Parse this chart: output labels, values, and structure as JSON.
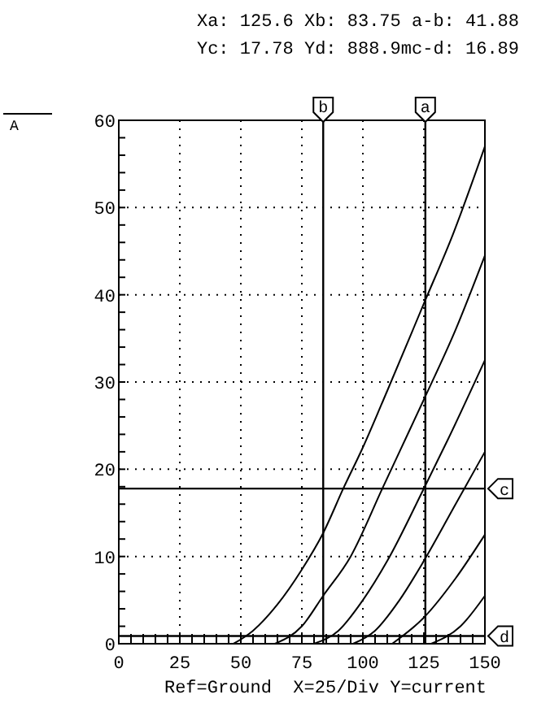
{
  "chart_data": {
    "type": "line",
    "title": "Xa: 125.6 Xb: 83.75 a-b: 41.88",
    "subtitle": "Yc: 17.78 Yd: 888.9mc-d: 16.89",
    "annotations": [
      "A",
      "Ref=Ground  X=25/Div Y=current"
    ],
    "xlim": [
      0,
      150
    ],
    "ylim": [
      0,
      60
    ],
    "xticks": [
      0,
      25,
      50,
      75,
      100,
      125,
      150
    ],
    "yticks": [
      0,
      10,
      20,
      30,
      40,
      50,
      60
    ],
    "grid": true,
    "line_style": "solid",
    "marker": "none",
    "series": [
      {
        "color": "#000000",
        "x": [
          47,
          55,
          65,
          75,
          83.75,
          92,
          100,
          110,
          125,
          137,
          150
        ],
        "values": [
          0,
          1.5,
          4.5,
          8.5,
          12.7,
          17.8,
          22.5,
          29,
          39,
          47,
          57
        ]
      },
      {
        "color": "#000000",
        "x": [
          64,
          75,
          83.75,
          95,
          108,
          115,
          125,
          138,
          150
        ],
        "values": [
          0,
          2,
          5.5,
          10,
          17.8,
          22,
          28,
          36,
          44.5
        ]
      },
      {
        "color": "#000000",
        "x": [
          80,
          90,
          100,
          110,
          125,
          135,
          150
        ],
        "values": [
          0,
          1.5,
          5,
          9.5,
          17.8,
          23.5,
          32.5
        ]
      },
      {
        "color": "#000000",
        "x": [
          96,
          105,
          115,
          125,
          138,
          150
        ],
        "values": [
          0,
          1.5,
          5,
          9.5,
          16,
          22
        ]
      },
      {
        "color": "#000000",
        "x": [
          112,
          125,
          138,
          150
        ],
        "values": [
          0,
          3,
          7.5,
          12.5
        ]
      },
      {
        "color": "#000000",
        "x": [
          128,
          140,
          150
        ],
        "values": [
          0,
          2,
          5.5
        ]
      }
    ],
    "ref_lines": [
      {
        "axis": "x",
        "value": 125.6,
        "label": "a",
        "color": "#000000"
      },
      {
        "axis": "x",
        "value": 83.75,
        "label": "b",
        "color": "#000000"
      },
      {
        "axis": "y",
        "value": 17.78,
        "label": "c",
        "color": "#000000"
      },
      {
        "axis": "y",
        "value": 0.8889,
        "label": "d",
        "color": "#000000"
      }
    ]
  }
}
